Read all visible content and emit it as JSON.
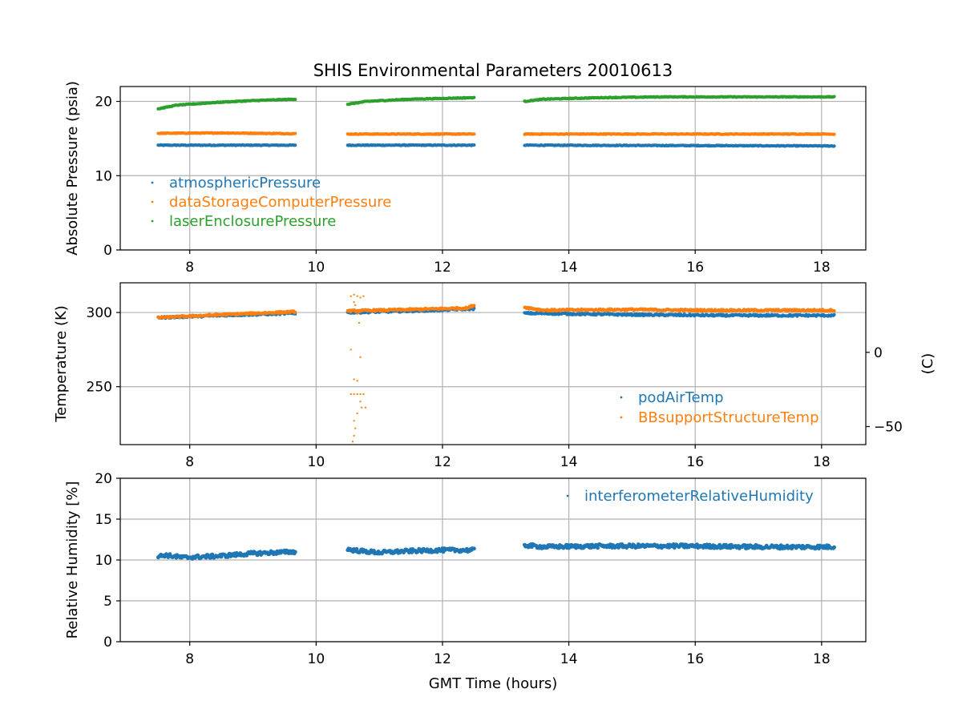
{
  "chart_data": [
    {
      "type": "scatter",
      "title": "SHIS Environmental Parameters 20010613",
      "xlabel": "",
      "ylabel": "Absolute Pressure (psia)",
      "xlim": [
        6.9,
        18.7
      ],
      "ylim": [
        0,
        22
      ],
      "xticks": [
        8,
        10,
        12,
        14,
        16,
        18
      ],
      "xtick_labels": [
        "8",
        "10",
        "12",
        "14",
        "16",
        "18"
      ],
      "yticks": [
        0,
        10,
        20
      ],
      "ytick_labels": [
        "0",
        "10",
        "20"
      ],
      "grid": true,
      "legend_position": "lower-left",
      "segments": [
        [
          7.5,
          9.67
        ],
        [
          10.5,
          12.5
        ],
        [
          13.3,
          18.2
        ]
      ],
      "series": [
        {
          "name": "atmosphericPressure",
          "color": "#1f77b4",
          "points": [
            [
              7.5,
              14.1
            ],
            [
              9.67,
              14.1
            ],
            [
              10.5,
              14.1
            ],
            [
              12.5,
              14.1
            ],
            [
              13.3,
              14.1
            ],
            [
              16.0,
              14.05
            ],
            [
              18.2,
              14.0
            ]
          ]
        },
        {
          "name": "dataStorageComputerPressure",
          "color": "#ff7f0e",
          "points": [
            [
              7.5,
              15.7
            ],
            [
              8.5,
              15.75
            ],
            [
              9.67,
              15.65
            ],
            [
              10.5,
              15.6
            ],
            [
              12.5,
              15.6
            ],
            [
              13.3,
              15.6
            ],
            [
              18.2,
              15.6
            ]
          ]
        },
        {
          "name": "laserEnclosurePressure",
          "color": "#2ca02c",
          "points": [
            [
              7.5,
              19.0
            ],
            [
              7.8,
              19.5
            ],
            [
              8.5,
              19.9
            ],
            [
              9.0,
              20.1
            ],
            [
              9.67,
              20.3
            ],
            [
              10.5,
              19.6
            ],
            [
              10.8,
              20.0
            ],
            [
              11.5,
              20.3
            ],
            [
              12.5,
              20.5
            ],
            [
              13.3,
              20.0
            ],
            [
              13.6,
              20.3
            ],
            [
              14.5,
              20.5
            ],
            [
              15.5,
              20.6
            ],
            [
              18.2,
              20.6
            ]
          ]
        }
      ]
    },
    {
      "type": "scatter",
      "xlabel": "",
      "ylabel": "Temperature (K)",
      "secondary_ylabel": "(C)",
      "xlim": [
        6.9,
        18.7
      ],
      "ylim": [
        211,
        320
      ],
      "xticks": [
        8,
        10,
        12,
        14,
        16,
        18
      ],
      "xtick_labels": [
        "8",
        "10",
        "12",
        "14",
        "16",
        "18"
      ],
      "yticks": [
        250,
        300
      ],
      "ytick_labels": [
        "250",
        "300"
      ],
      "secondary_yticks_celsius": [
        0,
        -50
      ],
      "secondary_ytick_labels": [
        "0",
        "−50"
      ],
      "grid": true,
      "legend_position": "lower-right",
      "segments": [
        [
          7.5,
          9.67
        ],
        [
          10.5,
          12.5
        ],
        [
          13.3,
          18.2
        ]
      ],
      "series": [
        {
          "name": "podAirTemp",
          "color": "#1f77b4",
          "points": [
            [
              7.5,
              296.5
            ],
            [
              8.5,
              298
            ],
            [
              9.67,
              299.5
            ],
            [
              10.5,
              300
            ],
            [
              11.5,
              301
            ],
            [
              12.5,
              302.5
            ],
            [
              13.3,
              299.5
            ],
            [
              15.0,
              298.5
            ],
            [
              16.5,
              298
            ],
            [
              18.2,
              298
            ]
          ]
        },
        {
          "name": "BBsupportStructureTemp",
          "color": "#ff7f0e",
          "points": [
            [
              7.5,
              296.5
            ],
            [
              8.5,
              298.5
            ],
            [
              9.67,
              300.5
            ],
            [
              10.5,
              301
            ],
            [
              11.5,
              302
            ],
            [
              12.4,
              303
            ],
            [
              12.5,
              305
            ],
            [
              13.3,
              303.5
            ],
            [
              13.6,
              301.5
            ],
            [
              15.0,
              302
            ],
            [
              16.0,
              301.5
            ],
            [
              18.2,
              301.5
            ]
          ]
        }
      ],
      "outliers": {
        "series": "BBsupportStructureTemp",
        "points": [
          [
            10.55,
            311
          ],
          [
            10.6,
            312
          ],
          [
            10.65,
            311
          ],
          [
            10.7,
            310
          ],
          [
            10.75,
            311
          ],
          [
            10.6,
            307
          ],
          [
            10.62,
            305
          ],
          [
            10.65,
            299
          ],
          [
            10.68,
            293
          ],
          [
            10.55,
            275
          ],
          [
            10.7,
            270
          ],
          [
            10.6,
            255
          ],
          [
            10.65,
            254
          ],
          [
            10.55,
            245
          ],
          [
            10.6,
            245
          ],
          [
            10.65,
            245
          ],
          [
            10.7,
            245
          ],
          [
            10.75,
            245
          ],
          [
            10.7,
            240
          ],
          [
            10.72,
            236
          ],
          [
            10.78,
            236
          ],
          [
            10.65,
            232
          ],
          [
            10.6,
            227
          ],
          [
            10.62,
            222
          ],
          [
            10.6,
            217
          ],
          [
            10.58,
            213
          ]
        ]
      }
    },
    {
      "type": "scatter",
      "xlabel": "GMT Time (hours)",
      "ylabel": "Relative Humidity [%]",
      "xlim": [
        6.9,
        18.7
      ],
      "ylim": [
        0,
        20
      ],
      "xticks": [
        8,
        10,
        12,
        14,
        16,
        18
      ],
      "xtick_labels": [
        "8",
        "10",
        "12",
        "14",
        "16",
        "18"
      ],
      "yticks": [
        0,
        5,
        10,
        15,
        20
      ],
      "ytick_labels": [
        "0",
        "5",
        "10",
        "15",
        "20"
      ],
      "grid": true,
      "legend_position": "upper-right",
      "segments": [
        [
          7.5,
          9.67
        ],
        [
          10.5,
          12.5
        ],
        [
          13.3,
          18.2
        ]
      ],
      "series": [
        {
          "name": "interferometerRelativeHumidity",
          "color": "#1f77b4",
          "points": [
            [
              7.5,
              10.4
            ],
            [
              7.6,
              10.6
            ],
            [
              7.9,
              10.3
            ],
            [
              8.5,
              10.5
            ],
            [
              9.0,
              10.8
            ],
            [
              9.67,
              11.0
            ],
            [
              10.5,
              11.3
            ],
            [
              10.7,
              11.1
            ],
            [
              11.0,
              10.9
            ],
            [
              11.5,
              11.1
            ],
            [
              12.0,
              11.2
            ],
            [
              12.5,
              11.2
            ],
            [
              13.3,
              11.8
            ],
            [
              13.6,
              11.6
            ],
            [
              14.5,
              11.7
            ],
            [
              16.0,
              11.7
            ],
            [
              17.0,
              11.6
            ],
            [
              18.2,
              11.6
            ]
          ]
        }
      ]
    }
  ]
}
